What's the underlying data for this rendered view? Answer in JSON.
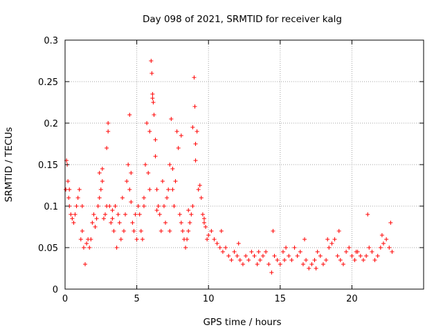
{
  "chart_data": {
    "type": "scatter",
    "title": "Day 098 of 2021, SRMTID for receiver kalg",
    "xlabel": "GPS time / hours",
    "ylabel": "SRMTID / TECUs",
    "xlim": [
      0,
      25
    ],
    "ylim": [
      0,
      0.3
    ],
    "x_ticks": [
      0,
      5,
      10,
      15,
      20
    ],
    "x_tick_labels": [
      "0",
      "5",
      "10",
      "15",
      "20"
    ],
    "y_ticks": [
      0,
      0.05,
      0.1,
      0.15,
      0.2,
      0.25,
      0.3
    ],
    "y_tick_labels": [
      "0",
      "0.05",
      "0.1",
      "0.15",
      "0.2",
      "0.25",
      "0.3"
    ],
    "grid": true,
    "marker": "+",
    "series": [
      {
        "name": "SRMTID",
        "color": "#ff0000",
        "x": [
          0.05,
          0.1,
          0.15,
          0.2,
          0.25,
          0.3,
          0.4,
          0.5,
          0.6,
          0.7,
          0.8,
          0.9,
          1.0,
          1.1,
          1.2,
          1.3,
          1.4,
          1.5,
          1.6,
          1.7,
          1.8,
          1.9,
          2.0,
          2.1,
          2.2,
          2.3,
          2.4,
          2.5,
          2.6,
          2.7,
          2.8,
          2.9,
          3.0,
          3.1,
          3.2,
          3.3,
          3.4,
          3.5,
          3.6,
          3.7,
          3.8,
          3.9,
          4.0,
          4.1,
          4.2,
          4.3,
          4.4,
          4.5,
          4.6,
          4.7,
          4.8,
          4.9,
          5.0,
          5.1,
          5.2,
          5.3,
          5.4,
          5.5,
          5.6,
          5.7,
          5.8,
          5.9,
          6.0,
          6.05,
          6.1,
          6.15,
          6.2,
          6.3,
          6.4,
          6.5,
          6.6,
          6.7,
          6.8,
          6.9,
          7.0,
          7.1,
          7.2,
          7.3,
          7.4,
          7.5,
          7.6,
          7.7,
          7.8,
          7.9,
          8.0,
          8.1,
          8.2,
          8.3,
          8.4,
          8.5,
          8.6,
          8.7,
          8.8,
          8.9,
          9.0,
          9.05,
          9.1,
          9.2,
          9.3,
          9.4,
          9.5,
          9.6,
          9.7,
          9.8,
          9.9,
          10.0,
          10.2,
          10.4,
          10.6,
          10.8,
          11.0,
          11.2,
          11.4,
          11.6,
          11.8,
          12.0,
          12.2,
          12.4,
          12.6,
          12.8,
          13.0,
          13.2,
          13.4,
          13.6,
          13.8,
          14.0,
          14.2,
          14.4,
          14.6,
          14.8,
          15.0,
          15.2,
          15.4,
          15.6,
          15.8,
          16.0,
          16.2,
          16.4,
          16.6,
          16.8,
          17.0,
          17.2,
          17.4,
          17.6,
          17.8,
          18.0,
          18.2,
          18.4,
          18.6,
          18.8,
          19.0,
          19.2,
          19.4,
          19.6,
          19.8,
          20.0,
          20.2,
          20.4,
          20.6,
          20.8,
          21.0,
          21.2,
          21.4,
          21.6,
          21.8,
          22.0,
          22.2,
          22.4,
          22.6,
          22.8,
          0.3,
          1.2,
          2.4,
          3.3,
          4.6,
          5.5,
          6.4,
          7.3,
          8.6,
          9.7,
          10.9,
          12.1,
          13.5,
          14.5,
          15.3,
          16.7,
          17.5,
          18.3,
          19.1,
          20.3,
          21.1,
          22.1,
          22.7,
          2.6,
          2.9,
          3.0,
          4.5,
          5.9,
          6.1,
          6.3,
          7.5,
          8.1,
          8.9,
          9.1
        ],
        "y": [
          0.12,
          0.155,
          0.15,
          0.13,
          0.11,
          0.1,
          0.09,
          0.085,
          0.08,
          0.09,
          0.1,
          0.11,
          0.12,
          0.06,
          0.07,
          0.05,
          0.03,
          0.055,
          0.06,
          0.05,
          0.06,
          0.08,
          0.09,
          0.075,
          0.085,
          0.1,
          0.11,
          0.12,
          0.13,
          0.085,
          0.09,
          0.1,
          0.19,
          0.1,
          0.08,
          0.095,
          0.07,
          0.1,
          0.05,
          0.09,
          0.08,
          0.06,
          0.11,
          0.07,
          0.09,
          0.13,
          0.15,
          0.12,
          0.14,
          0.08,
          0.07,
          0.09,
          0.06,
          0.1,
          0.09,
          0.07,
          0.06,
          0.1,
          0.15,
          0.2,
          0.14,
          0.12,
          0.275,
          0.26,
          0.235,
          0.225,
          0.21,
          0.16,
          0.12,
          0.1,
          0.09,
          0.07,
          0.13,
          0.1,
          0.08,
          0.11,
          0.12,
          0.15,
          0.205,
          0.12,
          0.1,
          0.13,
          0.19,
          0.17,
          0.09,
          0.08,
          0.07,
          0.06,
          0.05,
          0.06,
          0.07,
          0.08,
          0.09,
          0.1,
          0.255,
          0.22,
          0.175,
          0.19,
          0.12,
          0.125,
          0.11,
          0.09,
          0.08,
          0.075,
          0.06,
          0.065,
          0.07,
          0.06,
          0.055,
          0.05,
          0.045,
          0.05,
          0.04,
          0.035,
          0.045,
          0.04,
          0.035,
          0.03,
          0.04,
          0.035,
          0.045,
          0.04,
          0.03,
          0.035,
          0.04,
          0.045,
          0.03,
          0.02,
          0.04,
          0.035,
          0.03,
          0.045,
          0.05,
          0.04,
          0.035,
          0.05,
          0.04,
          0.045,
          0.03,
          0.035,
          0.025,
          0.03,
          0.035,
          0.045,
          0.04,
          0.03,
          0.035,
          0.05,
          0.055,
          0.06,
          0.04,
          0.035,
          0.03,
          0.045,
          0.05,
          0.04,
          0.035,
          0.045,
          0.04,
          0.035,
          0.04,
          0.05,
          0.045,
          0.035,
          0.04,
          0.05,
          0.055,
          0.06,
          0.05,
          0.045,
          0.12,
          0.1,
          0.14,
          0.085,
          0.105,
          0.11,
          0.095,
          0.07,
          0.095,
          0.085,
          0.07,
          0.055,
          0.045,
          0.07,
          0.035,
          0.06,
          0.025,
          0.06,
          0.07,
          0.045,
          0.09,
          0.065,
          0.08,
          0.145,
          0.17,
          0.2,
          0.21,
          0.19,
          0.23,
          0.18,
          0.145,
          0.185,
          0.195,
          0.155
        ],
        "sample_note": "representative sample of the plotted points"
      }
    ]
  }
}
